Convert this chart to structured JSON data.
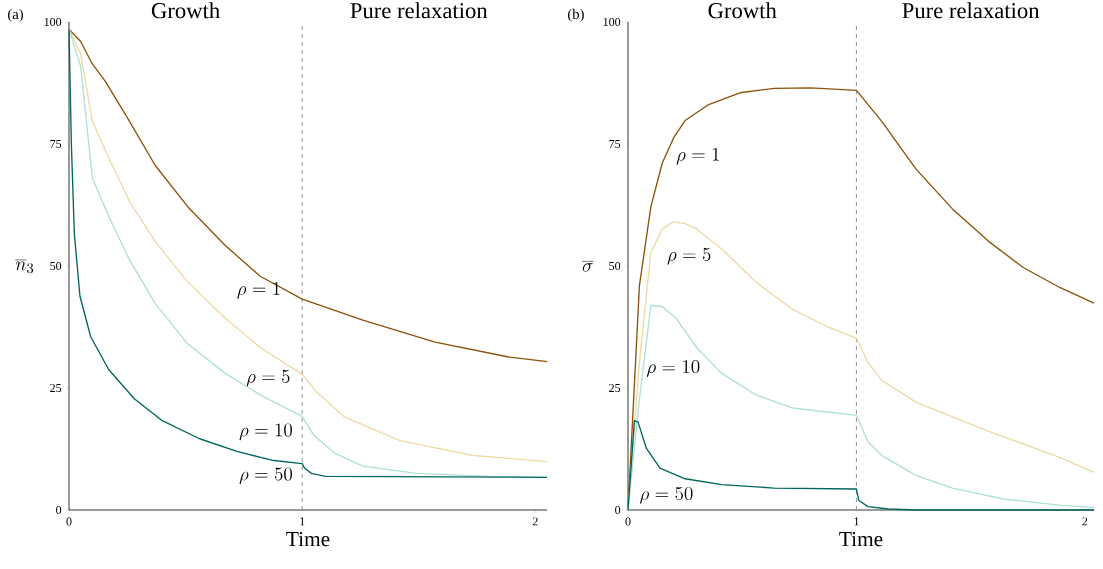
{
  "chart_data": [
    {
      "type": "line",
      "title": "(a)",
      "xlabel": "Time",
      "ylabel": "\\overline{n}_3",
      "annotations": [
        "Growth",
        "Pure relaxation"
      ],
      "xlim": [
        0,
        2.05
      ],
      "ylim": [
        0,
        100
      ],
      "xticks": [
        0,
        1,
        2
      ],
      "yticks": [
        0,
        25,
        50,
        75,
        100
      ],
      "grid": false,
      "marker": "none",
      "line_style": "solid",
      "ref_lines": [
        {
          "axis": "x",
          "value": 1,
          "color": "#999999",
          "line_style": "dashed"
        }
      ],
      "series": [
        {
          "name": "\\rho = 1",
          "color": "#8c510a",
          "x": [
            0,
            0.05,
            0.1,
            0.155,
            0.25,
            0.37,
            0.51,
            0.67,
            0.82,
            1,
            1.26,
            1.57,
            1.88,
            2.05
          ],
          "values": [
            98.5,
            96,
            91.4,
            87.9,
            80.4,
            70.6,
            62.1,
            54.2,
            47.9,
            43.2,
            38.9,
            34.4,
            31.4,
            30.4
          ]
        },
        {
          "name": "\\rho = 5",
          "color": "#efd9a3",
          "x": [
            0,
            0.05,
            0.1,
            0.17,
            0.26,
            0.37,
            0.51,
            0.67,
            0.82,
            1,
            1.06,
            1.18,
            1.42,
            1.73,
            2.05
          ],
          "values": [
            98.5,
            93.5,
            79.7,
            72.2,
            63.2,
            55,
            46.7,
            39.3,
            33.3,
            27.8,
            24.3,
            19.1,
            14.2,
            11.2,
            9.9
          ]
        },
        {
          "name": "\\rho = 10",
          "color": "#aee0d5",
          "x": [
            0,
            0.05,
            0.1,
            0.17,
            0.26,
            0.37,
            0.51,
            0.67,
            0.82,
            1,
            1.05,
            1.14,
            1.26,
            1.49,
            1.8,
            2.05
          ],
          "values": [
            98.5,
            90.9,
            68.1,
            60.2,
            51.2,
            42.3,
            34,
            28,
            23.6,
            19.2,
            15.3,
            11.6,
            9,
            7.5,
            6.9,
            6.7
          ]
        },
        {
          "name": "\\rho = 50",
          "color": "#01665e",
          "x": [
            0,
            0.01,
            0.023,
            0.047,
            0.093,
            0.17,
            0.28,
            0.4,
            0.56,
            0.72,
            0.87,
            1,
            1.01,
            1.04,
            1.1,
            2.05
          ],
          "values": [
            98.5,
            75.2,
            56.5,
            43.8,
            35.5,
            28.8,
            22.8,
            18.3,
            14.6,
            12,
            10.2,
            9.5,
            8.6,
            7.5,
            6.9,
            6.7
          ]
        }
      ]
    },
    {
      "type": "line",
      "title": "(b)",
      "xlabel": "Time",
      "ylabel": "\\overline{\\sigma}",
      "annotations": [
        "Growth",
        "Pure relaxation"
      ],
      "xlim": [
        0,
        2.04
      ],
      "ylim": [
        0,
        100
      ],
      "xticks": [
        0,
        1,
        2
      ],
      "yticks": [
        0,
        25,
        50,
        75,
        100
      ],
      "grid": false,
      "marker": "none",
      "line_style": "solid",
      "ref_lines": [
        {
          "axis": "x",
          "value": 1,
          "color": "#999999",
          "line_style": "dashed"
        }
      ],
      "series": [
        {
          "name": "\\rho = 1",
          "color": "#8c510a",
          "x": [
            0,
            0.05,
            0.1,
            0.15,
            0.2,
            0.25,
            0.35,
            0.49,
            0.64,
            0.8,
            1,
            1.11,
            1.26,
            1.42,
            1.58,
            1.73,
            1.89,
            2.04
          ],
          "values": [
            0,
            46,
            62.1,
            71.1,
            76.3,
            79.8,
            83,
            85.5,
            86.4,
            86.5,
            86,
            79.7,
            69.9,
            61.7,
            55,
            49.7,
            45.6,
            42.4
          ]
        },
        {
          "name": "\\rho = 5",
          "color": "#efd9a3",
          "x": [
            0,
            0.05,
            0.1,
            0.15,
            0.2,
            0.25,
            0.3,
            0.41,
            0.56,
            0.72,
            0.88,
            1,
            1.05,
            1.11,
            1.26,
            1.58,
            1.89,
            2.04
          ],
          "values": [
            0,
            30.3,
            52.7,
            57.6,
            59.1,
            58.7,
            57.6,
            53.5,
            46.7,
            41.1,
            37.4,
            35.2,
            30.3,
            26.6,
            22.1,
            16.1,
            10.8,
            7.7
          ]
        },
        {
          "name": "\\rho = 10",
          "color": "#aee0d5",
          "x": [
            0,
            0.05,
            0.1,
            0.15,
            0.21,
            0.3,
            0.41,
            0.56,
            0.72,
            1,
            1.05,
            1.11,
            1.26,
            1.42,
            1.65,
            1.89,
            2.04
          ],
          "values": [
            0,
            22.8,
            41.9,
            41.7,
            39.3,
            33.3,
            28,
            23.6,
            20.9,
            19.4,
            14,
            11.2,
            7.1,
            4.5,
            2.2,
            1,
            0.5
          ]
        },
        {
          "name": "\\rho = 50",
          "color": "#01665e",
          "x": [
            0,
            0.028,
            0.044,
            0.08,
            0.14,
            0.25,
            0.41,
            0.64,
            1,
            1.01,
            1.05,
            1.14,
            1.26,
            2.04
          ],
          "values": [
            0,
            18.3,
            18,
            12.7,
            8.6,
            6.4,
            5.2,
            4.5,
            4.3,
            2,
            0.7,
            0.2,
            0,
            0
          ]
        }
      ]
    }
  ]
}
